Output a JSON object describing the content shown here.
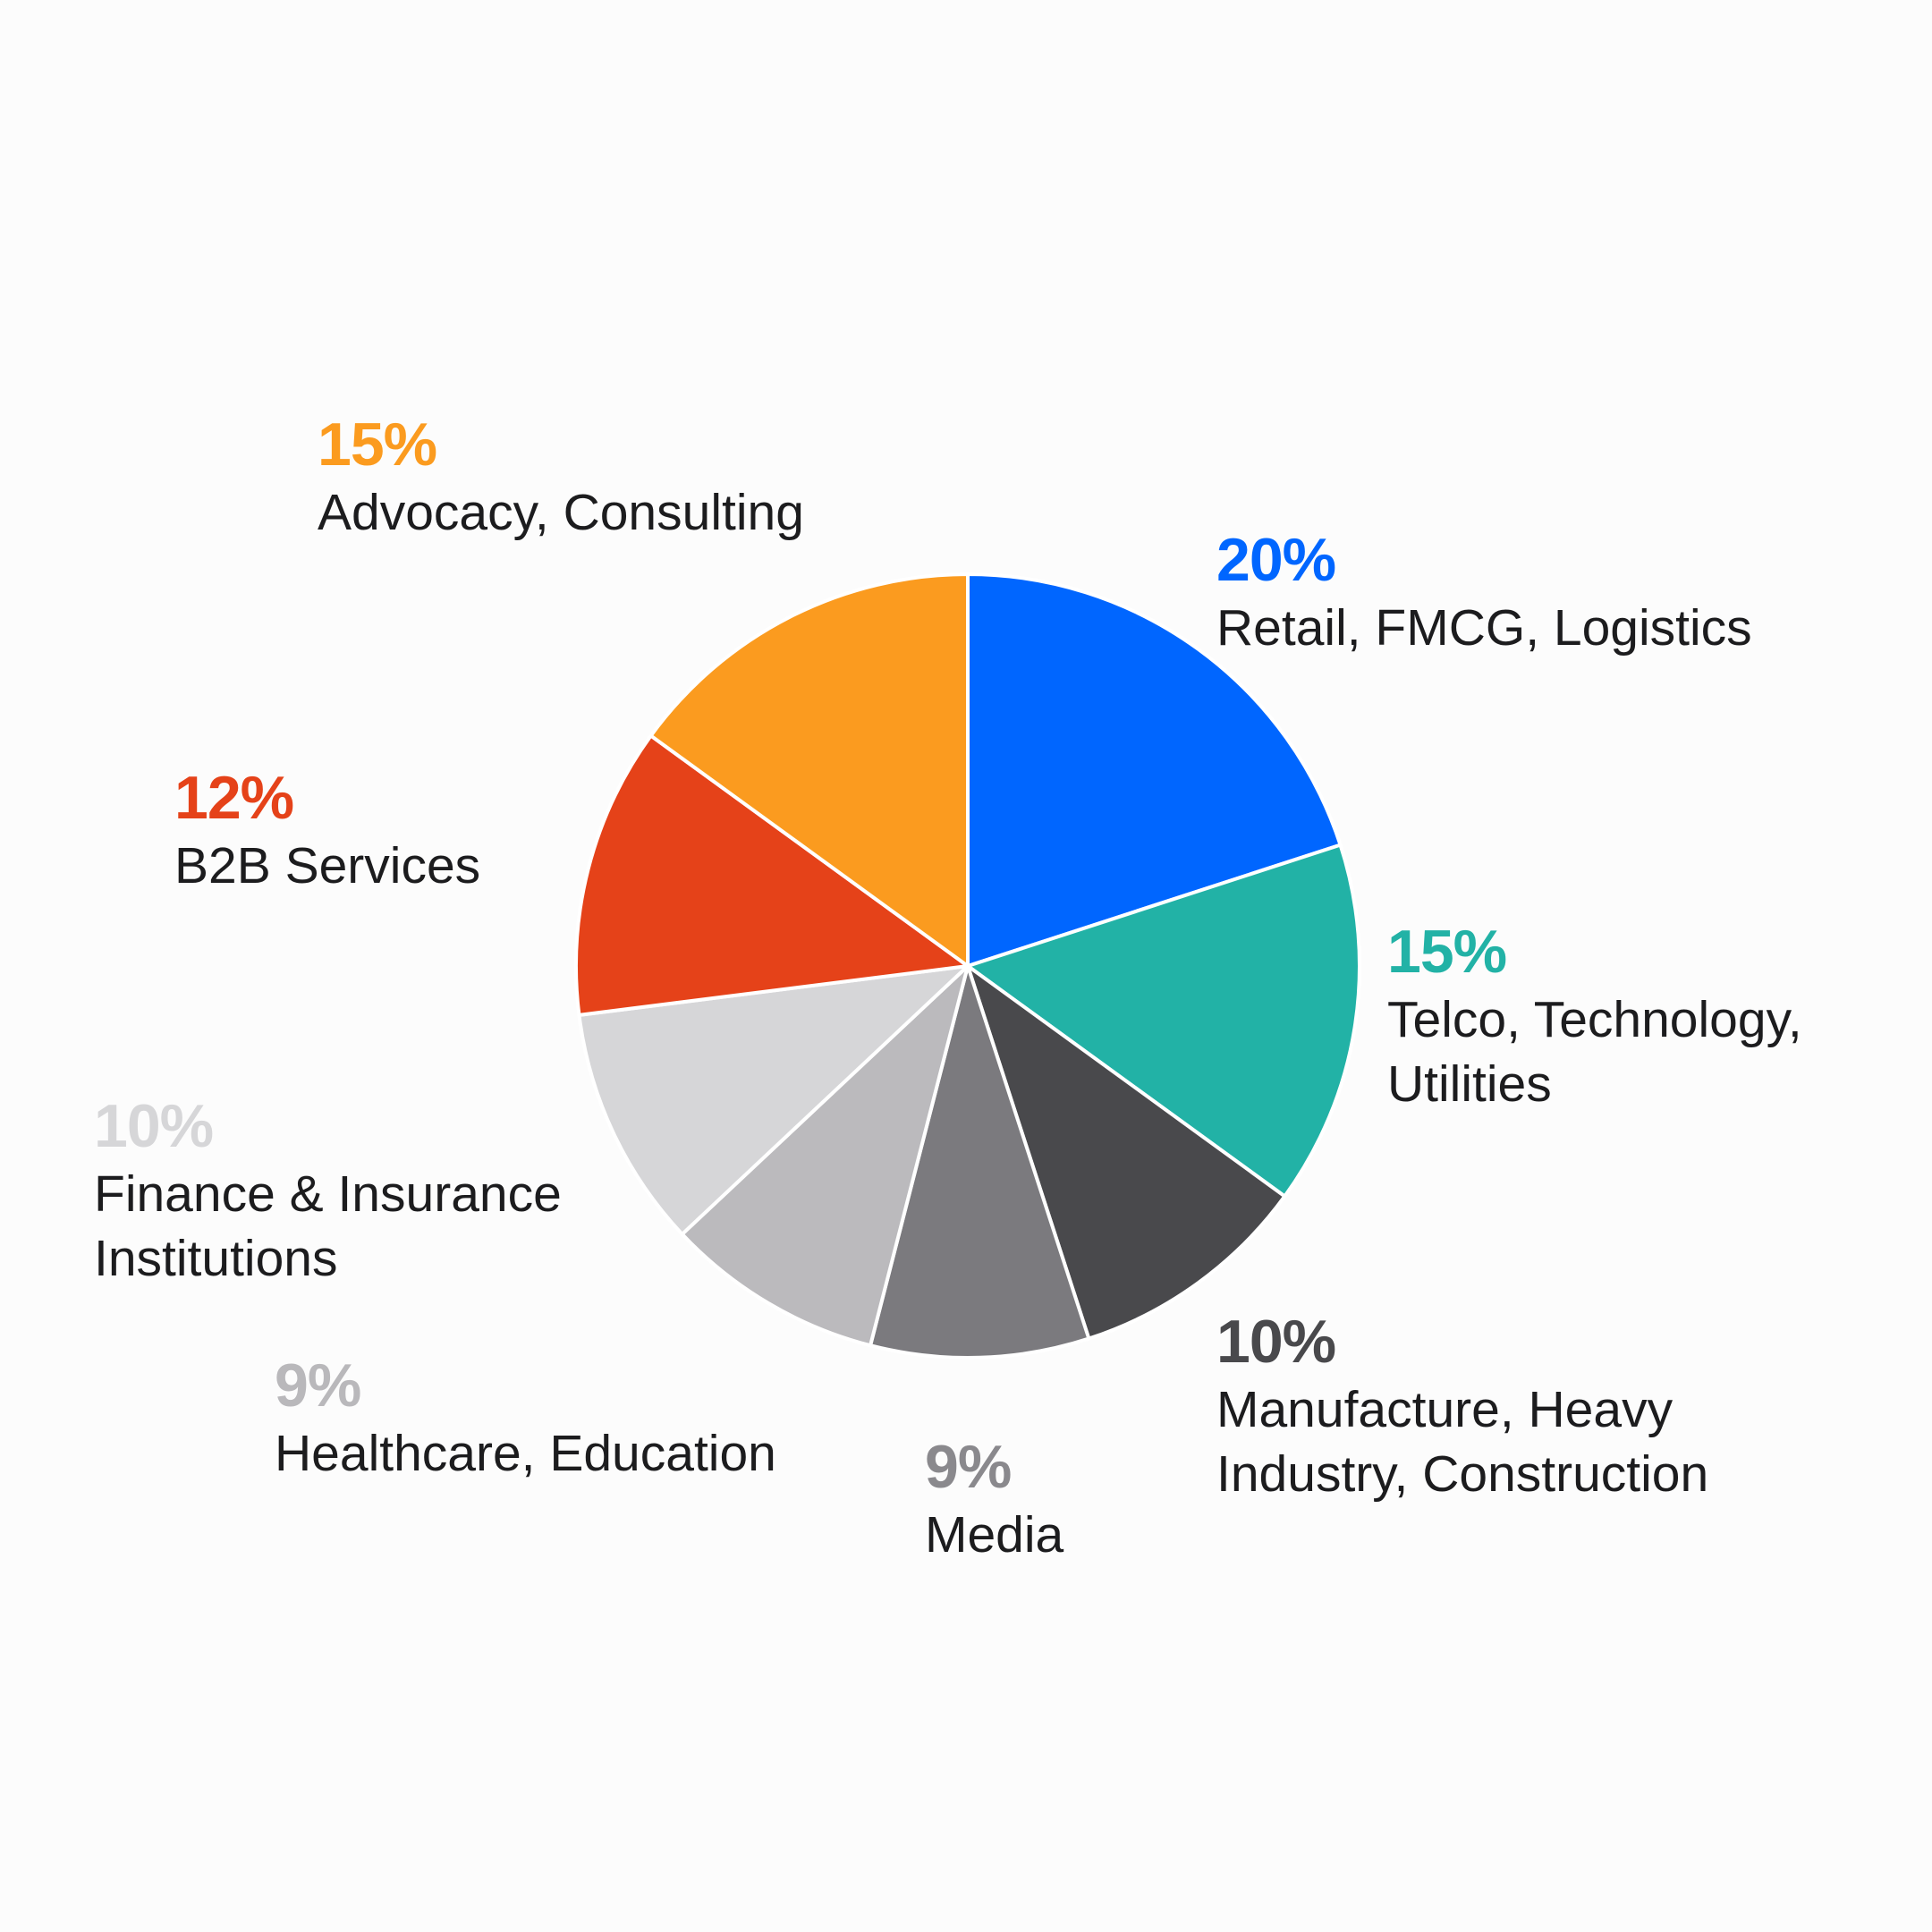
{
  "chart_data": {
    "type": "pie",
    "start_angle_deg": 0,
    "direction": "clockwise",
    "slices": [
      {
        "label": "Retail, FMCG, Logistics",
        "value": 20,
        "value_label": "20%",
        "color": "#0066ff",
        "label_color": "#0066ff"
      },
      {
        "label": "Telco, Technology,\nUtilities",
        "value": 15,
        "value_label": "15%",
        "color": "#22b2a6",
        "label_color": "#22b2a6"
      },
      {
        "label": "Manufacture, Heavy\nIndustry, Construction",
        "value": 10,
        "value_label": "10%",
        "color": "#49494c",
        "label_color": "#49494c"
      },
      {
        "label": "Media",
        "value": 9,
        "value_label": "9%",
        "color": "#7b7a7e",
        "label_color": "#8a898d"
      },
      {
        "label": "Healthcare, Education",
        "value": 9,
        "value_label": "9%",
        "color": "#bbbabd",
        "label_color": "#b9b8bb"
      },
      {
        "label": "Finance & Insurance\nInstitutions",
        "value": 10,
        "value_label": "10%",
        "color": "#d6d6d8",
        "label_color": "#d6d6d8"
      },
      {
        "label": "B2B Services",
        "value": 12,
        "value_label": "12%",
        "color": "#e54219",
        "label_color": "#e54219"
      },
      {
        "label": "Advocacy, Consulting",
        "value": 15,
        "value_label": "15%",
        "color": "#fb9b1f",
        "label_color": "#fb9b1f"
      }
    ]
  }
}
